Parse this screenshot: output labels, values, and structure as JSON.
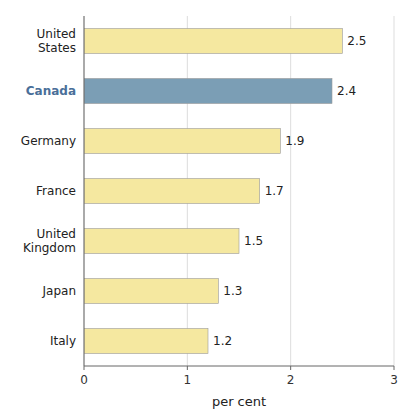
{
  "chart_data": {
    "type": "bar",
    "orientation": "horizontal",
    "categories": [
      "United\nStates",
      "Canada",
      "Germany",
      "France",
      "United\nKingdom",
      "Japan",
      "Italy"
    ],
    "values": [
      2.5,
      2.4,
      1.9,
      1.7,
      1.5,
      1.3,
      1.2
    ],
    "colors": [
      "#f5e8a0",
      "#7b9eb5",
      "#f5e8a0",
      "#f5e8a0",
      "#f5e8a0",
      "#f5e8a0",
      "#f5e8a0"
    ],
    "x_label": "per cent",
    "xlim": [
      0,
      3
    ],
    "xticks": [
      0,
      1,
      2,
      3
    ],
    "grid": true,
    "data_labels": true
  }
}
